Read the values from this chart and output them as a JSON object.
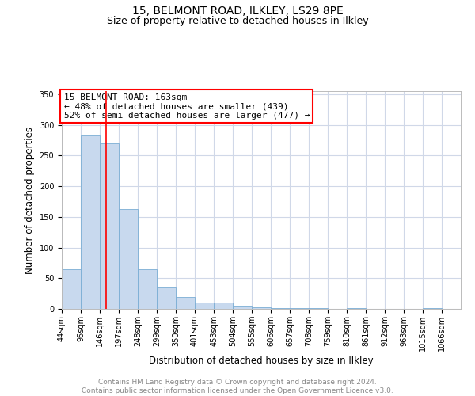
{
  "title_line1": "15, BELMONT ROAD, ILKLEY, LS29 8PE",
  "title_line2": "Size of property relative to detached houses in Ilkley",
  "xlabel": "Distribution of detached houses by size in Ilkley",
  "ylabel": "Number of detached properties",
  "footer": "Contains HM Land Registry data © Crown copyright and database right 2024.\nContains public sector information licensed under the Open Government Licence v3.0.",
  "bar_edges": [
    44,
    95,
    146,
    197,
    248,
    299,
    350,
    401,
    453,
    504,
    555,
    606,
    657,
    708,
    759,
    810,
    861,
    912,
    963,
    1014,
    1065,
    1116
  ],
  "bar_heights": [
    65,
    283,
    270,
    163,
    65,
    35,
    20,
    10,
    10,
    5,
    3,
    1,
    1,
    1,
    0,
    1,
    0,
    0,
    0,
    1,
    0,
    1
  ],
  "bar_color": "#c8d9ee",
  "bar_edgecolor": "#7aadd4",
  "annotation_text": "15 BELMONT ROAD: 163sqm\n← 48% of detached houses are smaller (439)\n52% of semi-detached houses are larger (477) →",
  "annotation_box_edgecolor": "red",
  "vline_x": 163,
  "vline_color": "red",
  "ylim": [
    0,
    355
  ],
  "yticks": [
    0,
    50,
    100,
    150,
    200,
    250,
    300,
    350
  ],
  "xlim": [
    44,
    1116
  ],
  "xtick_labels": [
    "44sqm",
    "95sqm",
    "146sqm",
    "197sqm",
    "248sqm",
    "299sqm",
    "350sqm",
    "401sqm",
    "453sqm",
    "504sqm",
    "555sqm",
    "606sqm",
    "657sqm",
    "708sqm",
    "759sqm",
    "810sqm",
    "861sqm",
    "912sqm",
    "963sqm",
    "1015sqm",
    "1066sqm"
  ],
  "xtick_positions": [
    44,
    95,
    146,
    197,
    248,
    299,
    350,
    401,
    453,
    504,
    555,
    606,
    657,
    708,
    759,
    810,
    861,
    912,
    963,
    1014,
    1065
  ],
  "grid_color": "#d0d8e8",
  "bg_color": "#ffffff",
  "title_fontsize": 10,
  "subtitle_fontsize": 9,
  "axis_label_fontsize": 8.5,
  "tick_fontsize": 7,
  "footer_fontsize": 6.5,
  "annotation_fontsize": 8
}
